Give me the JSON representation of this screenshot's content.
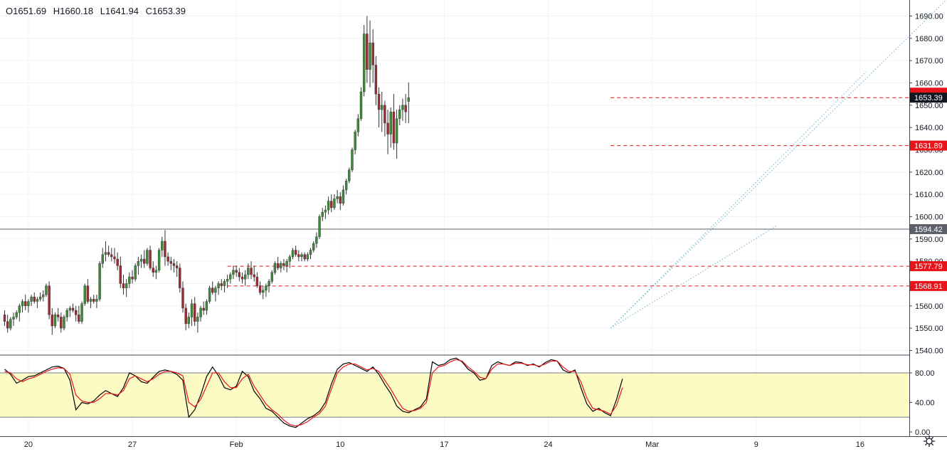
{
  "ohlc": {
    "open": "O1651.69",
    "high": "H1660.18",
    "low": "L1641.94",
    "close": "C1653.39"
  },
  "colors": {
    "up": "#3c8a3a",
    "down": "#9b2b35",
    "wick": "#333333",
    "price_tag_bg": "#131722",
    "level_red": "#e8141a",
    "level_gray": "#5d606b",
    "channel": "#6fb4c8",
    "stoch_k": "#000000",
    "stoch_d": "#e8141a",
    "stoch_band": "#fdfbc4"
  },
  "chart_data": [
    {
      "type": "candlestick",
      "ylim": [
        1535,
        1695
      ],
      "y_ticks": [
        "1540.00",
        "1550.00",
        "1560.00",
        "1570.00",
        "1580.00",
        "1590.00",
        "1600.00",
        "1610.00",
        "1620.00",
        "1630.00",
        "1640.00",
        "1650.00",
        "1660.00",
        "1670.00",
        "1680.00",
        "1690.00"
      ],
      "x_ticks": [
        {
          "label": "20",
          "bar": 8
        },
        {
          "label": "27",
          "bar": 43
        },
        {
          "label": "Feb",
          "bar": 78
        },
        {
          "label": "10",
          "bar": 113
        },
        {
          "label": "17",
          "bar": 148
        },
        {
          "label": "24",
          "bar": 183
        },
        {
          "label": "Mar",
          "bar": 218
        },
        {
          "label": "9",
          "bar": 253
        },
        {
          "label": "16",
          "bar": 288
        }
      ],
      "candles": [
        [
          1556,
          1558,
          1551,
          1553
        ],
        [
          1553,
          1556,
          1548,
          1550
        ],
        [
          1550,
          1555,
          1549,
          1554
        ],
        [
          1554,
          1557,
          1551,
          1555
        ],
        [
          1555,
          1558,
          1554,
          1557
        ],
        [
          1557,
          1561,
          1553,
          1560
        ],
        [
          1560,
          1563,
          1557,
          1562
        ],
        [
          1562,
          1565,
          1558,
          1560
        ],
        [
          1560,
          1563,
          1557,
          1562
        ],
        [
          1562,
          1565,
          1560,
          1564
        ],
        [
          1564,
          1566,
          1561,
          1562
        ],
        [
          1562,
          1564,
          1559,
          1563
        ],
        [
          1563,
          1566,
          1562,
          1564
        ],
        [
          1564,
          1567,
          1562,
          1565
        ],
        [
          1565,
          1570,
          1564,
          1569
        ],
        [
          1569,
          1571,
          1554,
          1556
        ],
        [
          1556,
          1559,
          1547,
          1551
        ],
        [
          1551,
          1557,
          1550,
          1556
        ],
        [
          1556,
          1559,
          1553,
          1555
        ],
        [
          1555,
          1557,
          1548,
          1550
        ],
        [
          1550,
          1556,
          1549,
          1555
        ],
        [
          1555,
          1559,
          1553,
          1558
        ],
        [
          1558,
          1560,
          1555,
          1559
        ],
        [
          1559,
          1561,
          1557,
          1558
        ],
        [
          1558,
          1560,
          1553,
          1556
        ],
        [
          1556,
          1560,
          1552,
          1553
        ],
        [
          1553,
          1562,
          1552,
          1561
        ],
        [
          1561,
          1570,
          1560,
          1569
        ],
        [
          1569,
          1572,
          1561,
          1562
        ],
        [
          1562,
          1564,
          1559,
          1563
        ],
        [
          1563,
          1565,
          1561,
          1562
        ],
        [
          1562,
          1565,
          1559,
          1563
        ],
        [
          1563,
          1580,
          1562,
          1579
        ],
        [
          1579,
          1586,
          1577,
          1583
        ],
        [
          1583,
          1589,
          1580,
          1584
        ],
        [
          1584,
          1587,
          1582,
          1583
        ],
        [
          1583,
          1586,
          1580,
          1582
        ],
        [
          1582,
          1586,
          1579,
          1581
        ],
        [
          1581,
          1584,
          1576,
          1578
        ],
        [
          1578,
          1582,
          1568,
          1570
        ],
        [
          1570,
          1574,
          1565,
          1568
        ],
        [
          1568,
          1572,
          1564,
          1570
        ],
        [
          1570,
          1575,
          1568,
          1573
        ],
        [
          1573,
          1576,
          1570,
          1572
        ],
        [
          1572,
          1579,
          1571,
          1578
        ],
        [
          1578,
          1582,
          1574,
          1580
        ],
        [
          1580,
          1583,
          1577,
          1581
        ],
        [
          1581,
          1585,
          1577,
          1579
        ],
        [
          1579,
          1586,
          1578,
          1585
        ],
        [
          1585,
          1587,
          1576,
          1577
        ],
        [
          1577,
          1580,
          1573,
          1575
        ],
        [
          1575,
          1578,
          1572,
          1576
        ],
        [
          1576,
          1586,
          1575,
          1585
        ],
        [
          1585,
          1591,
          1582,
          1589
        ],
        [
          1589,
          1594,
          1578,
          1582
        ],
        [
          1582,
          1584,
          1578,
          1580
        ],
        [
          1580,
          1582,
          1576,
          1579
        ],
        [
          1579,
          1581,
          1575,
          1578
        ],
        [
          1578,
          1580,
          1573,
          1577
        ],
        [
          1577,
          1579,
          1566,
          1568
        ],
        [
          1568,
          1571,
          1557,
          1559
        ],
        [
          1559,
          1561,
          1549,
          1552
        ],
        [
          1552,
          1557,
          1550,
          1555
        ],
        [
          1555,
          1563,
          1551,
          1561
        ],
        [
          1561,
          1564,
          1551,
          1553
        ],
        [
          1553,
          1557,
          1548,
          1555
        ],
        [
          1555,
          1560,
          1553,
          1559
        ],
        [
          1559,
          1562,
          1556,
          1558
        ],
        [
          1558,
          1563,
          1556,
          1562
        ],
        [
          1562,
          1569,
          1561,
          1568
        ],
        [
          1568,
          1571,
          1565,
          1566
        ],
        [
          1566,
          1569,
          1562,
          1568
        ],
        [
          1568,
          1571,
          1565,
          1570
        ],
        [
          1570,
          1572,
          1567,
          1569
        ],
        [
          1569,
          1572,
          1566,
          1571
        ],
        [
          1571,
          1574,
          1568,
          1572
        ],
        [
          1572,
          1575,
          1570,
          1574
        ],
        [
          1574,
          1578,
          1572,
          1576
        ],
        [
          1576,
          1578,
          1573,
          1575
        ],
        [
          1575,
          1577,
          1571,
          1573
        ],
        [
          1573,
          1575,
          1570,
          1572
        ],
        [
          1572,
          1576,
          1569,
          1574
        ],
        [
          1574,
          1579,
          1572,
          1577
        ],
        [
          1577,
          1580,
          1572,
          1574
        ],
        [
          1574,
          1578,
          1571,
          1573
        ],
        [
          1573,
          1575,
          1568,
          1569
        ],
        [
          1569,
          1571,
          1565,
          1566
        ],
        [
          1566,
          1569,
          1563,
          1567
        ],
        [
          1567,
          1570,
          1564,
          1569
        ],
        [
          1569,
          1572,
          1566,
          1571
        ],
        [
          1571,
          1576,
          1570,
          1575
        ],
        [
          1575,
          1580,
          1574,
          1579
        ],
        [
          1579,
          1582,
          1576,
          1577
        ],
        [
          1577,
          1580,
          1575,
          1579
        ],
        [
          1579,
          1581,
          1576,
          1578
        ],
        [
          1578,
          1581,
          1575,
          1580
        ],
        [
          1580,
          1583,
          1577,
          1582
        ],
        [
          1582,
          1586,
          1581,
          1585
        ],
        [
          1585,
          1587,
          1582,
          1583
        ],
        [
          1583,
          1585,
          1580,
          1582
        ],
        [
          1582,
          1584,
          1580,
          1583
        ],
        [
          1583,
          1584,
          1580,
          1581
        ],
        [
          1581,
          1584,
          1580,
          1583
        ],
        [
          1583,
          1586,
          1581,
          1585
        ],
        [
          1585,
          1589,
          1584,
          1588
        ],
        [
          1588,
          1593,
          1586,
          1591
        ],
        [
          1591,
          1601,
          1590,
          1600
        ],
        [
          1600,
          1604,
          1598,
          1602
        ],
        [
          1602,
          1605,
          1599,
          1603
        ],
        [
          1603,
          1609,
          1601,
          1607
        ],
        [
          1607,
          1610,
          1602,
          1604
        ],
        [
          1604,
          1610,
          1603,
          1608
        ],
        [
          1608,
          1612,
          1606,
          1609
        ],
        [
          1609,
          1611,
          1603,
          1606
        ],
        [
          1606,
          1614,
          1605,
          1612
        ],
        [
          1612,
          1617,
          1610,
          1616
        ],
        [
          1616,
          1622,
          1615,
          1621
        ],
        [
          1621,
          1631,
          1620,
          1630
        ],
        [
          1630,
          1639,
          1628,
          1638
        ],
        [
          1638,
          1646,
          1636,
          1644
        ],
        [
          1644,
          1658,
          1643,
          1656
        ],
        [
          1656,
          1686,
          1654,
          1682
        ],
        [
          1682,
          1690,
          1660,
          1666
        ],
        [
          1666,
          1688,
          1658,
          1678
        ],
        [
          1678,
          1684,
          1660,
          1668
        ],
        [
          1668,
          1672,
          1650,
          1655
        ],
        [
          1655,
          1658,
          1640,
          1648
        ],
        [
          1648,
          1656,
          1638,
          1650
        ],
        [
          1650,
          1652,
          1636,
          1642
        ],
        [
          1642,
          1648,
          1628,
          1637
        ],
        [
          1637,
          1649,
          1631,
          1647
        ],
        [
          1647,
          1655,
          1630,
          1633
        ],
        [
          1633,
          1648,
          1626,
          1644
        ],
        [
          1644,
          1650,
          1641,
          1648
        ],
        [
          1648,
          1653,
          1643,
          1650
        ],
        [
          1650,
          1655,
          1642,
          1647
        ],
        [
          1651.69,
          1660.18,
          1641.94,
          1653.39
        ]
      ],
      "channel_lines": [
        [
          [
            204,
            1550
          ],
          [
            290,
            1665
          ]
        ],
        [
          [
            204,
            1550
          ],
          [
            323,
            1705
          ]
        ],
        [
          [
            204,
            1550
          ],
          [
            260,
            1596
          ]
        ]
      ],
      "horizontal_levels": [
        {
          "value": 1653.39,
          "label": "1653.39",
          "style": "dashed",
          "color_key": "level_red",
          "tag": "dark"
        },
        {
          "value": 1631.89,
          "label": "1631.89",
          "style": "dashed",
          "color_key": "level_red",
          "tag": "red"
        },
        {
          "value": 1594.42,
          "label": "1594.42",
          "style": "solid",
          "color_key": "level_gray",
          "tag": "gray"
        },
        {
          "value": 1577.79,
          "label": "1577.79",
          "style": "dashed",
          "color_key": "level_red",
          "tag": "red"
        },
        {
          "value": 1568.91,
          "label": "1568.91",
          "style": "dashed",
          "color_key": "level_red",
          "tag": "red"
        }
      ]
    },
    {
      "type": "line",
      "title": "",
      "ylim": [
        0,
        100
      ],
      "y_ticks": [
        "0.00",
        "40.00",
        "80.00"
      ],
      "band": [
        20,
        80
      ],
      "series": [
        {
          "color_key": "stoch_k",
          "values": [
            85,
            78,
            66,
            70,
            75,
            76,
            80,
            84,
            88,
            89,
            86,
            70,
            30,
            40,
            38,
            42,
            50,
            56,
            52,
            48,
            60,
            80,
            76,
            68,
            66,
            74,
            82,
            84,
            82,
            78,
            70,
            20,
            30,
            50,
            75,
            88,
            76,
            60,
            57,
            62,
            82,
            75,
            55,
            45,
            32,
            28,
            20,
            12,
            8,
            6,
            12,
            18,
            22,
            28,
            40,
            65,
            85,
            92,
            94,
            90,
            86,
            82,
            88,
            78,
            64,
            52,
            35,
            28,
            26,
            30,
            34,
            45,
            95,
            90,
            92,
            98,
            102,
            95,
            85,
            80,
            70,
            72,
            90,
            95,
            92,
            90,
            95,
            94,
            90,
            92,
            88,
            94,
            98,
            96,
            84,
            80,
            84,
            60,
            38,
            28,
            32,
            26,
            22,
            44,
            72
          ]
        },
        {
          "color_key": "stoch_d",
          "values": [
            82,
            80,
            72,
            68,
            72,
            74,
            78,
            82,
            85,
            87,
            86,
            78,
            50,
            42,
            40,
            40,
            45,
            52,
            52,
            50,
            56,
            72,
            76,
            72,
            68,
            72,
            78,
            82,
            82,
            80,
            76,
            40,
            34,
            44,
            62,
            80,
            80,
            68,
            60,
            60,
            72,
            78,
            62,
            50,
            38,
            30,
            24,
            16,
            10,
            8,
            10,
            14,
            20,
            25,
            35,
            58,
            80,
            88,
            92,
            92,
            88,
            84,
            86,
            82,
            70,
            58,
            44,
            32,
            28,
            29,
            32,
            40,
            80,
            88,
            90,
            95,
            98,
            96,
            88,
            82,
            74,
            72,
            85,
            92,
            92,
            90,
            93,
            93,
            91,
            91,
            89,
            92,
            96,
            96,
            88,
            82,
            82,
            68,
            46,
            32,
            30,
            28,
            24,
            36,
            60
          ]
        }
      ]
    }
  ]
}
